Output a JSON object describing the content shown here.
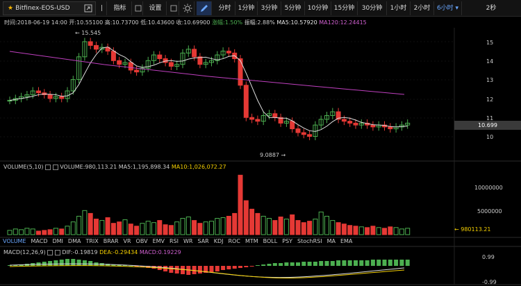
{
  "toolbar": {
    "symbol": "Bitfinex-EOS-USD",
    "indicators_button": "指标",
    "settings_button": "设置",
    "intervals": [
      "分时",
      "1分钟",
      "3分钟",
      "5分钟",
      "10分钟",
      "15分钟",
      "30分钟",
      "1小时",
      "2小时",
      "6小时"
    ],
    "active_interval": "6小时",
    "refresh": "2秒"
  },
  "info": {
    "time": "时间:2018-06-19 14:00",
    "open": "开:10.55100",
    "high": "高:10.73700",
    "low": "低:10.43600",
    "close": "收:10.69900",
    "change": "涨幅:1.50%",
    "amplitude": "振幅:2.88%",
    "ma5": "MA5:10.57920",
    "ma120": "MA120:12.24415"
  },
  "price_panel": {
    "y_ticks": [
      "15",
      "14",
      "13",
      "12",
      "11",
      "10"
    ],
    "current_price": "10.699",
    "high_label": "15.545",
    "low_label": "9.0887",
    "colors": {
      "up": "#4caf50",
      "down": "#e53935",
      "ma5": "#dddddd",
      "ma120": "#c040c0",
      "price_tag": "#3a3a3a"
    }
  },
  "volume_panel": {
    "header": {
      "name": "VOLUME(5,10)",
      "value": "VOLUME:980,113.21",
      "ma5": "MA5:1,195,898.34",
      "ma10": "MA10:1,026,072.27"
    },
    "y_ticks": [
      "10000000",
      "5000000"
    ],
    "current": "980113.21"
  },
  "indicator_tabs": [
    "VOLUME",
    "MACD",
    "DMI",
    "DMA",
    "TRIX",
    "BRAR",
    "VR",
    "OBV",
    "EMV",
    "RSI",
    "WR",
    "SAR",
    "KDJ",
    "ROC",
    "MTM",
    "BOLL",
    "PSY",
    "StochRSI",
    "MA",
    "EMA"
  ],
  "active_indicator": "VOLUME",
  "macd_panel": {
    "header": {
      "name": "MACD(12,26,9)",
      "dif": "DIF:-0.19819",
      "dea": "DEA:-0.29434",
      "macd": "MACD:0.19229"
    },
    "y_ticks": [
      "0.99",
      "-0.99"
    ]
  }
}
